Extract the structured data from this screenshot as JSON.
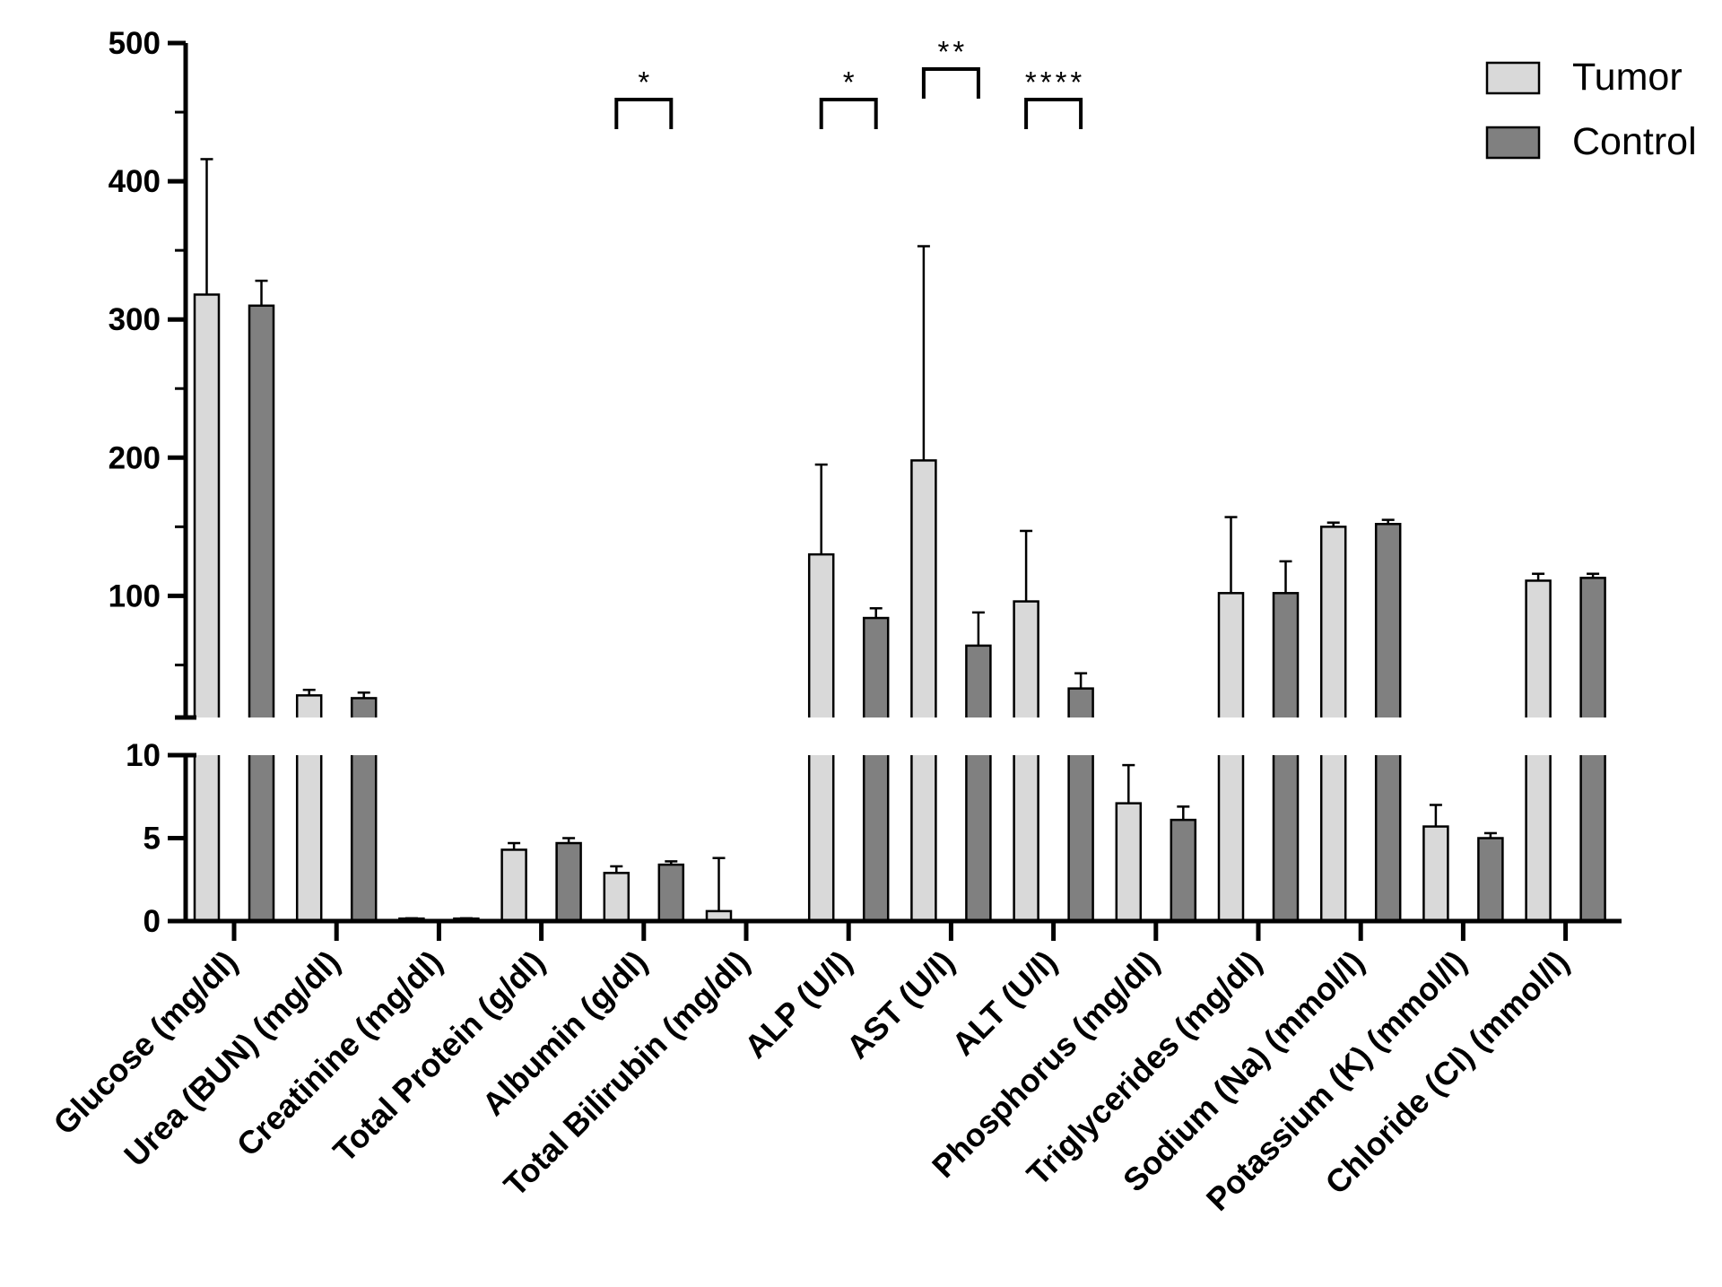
{
  "chart_data": {
    "type": "bar",
    "title": "",
    "xlabel": "",
    "ylabel": "",
    "y_axis_break": {
      "lower_range": [
        0,
        10
      ],
      "upper_range": [
        12,
        500
      ]
    },
    "y_ticks_lower": [
      "0",
      "5",
      "10"
    ],
    "y_ticks_upper": [
      "100",
      "200",
      "300",
      "400",
      "500"
    ],
    "categories": [
      "Glucose (mg/dl)",
      "Urea (BUN) (mg/dl)",
      "Creatinine (mg/dl)",
      "Total Protein (g/dl)",
      "Albumin (g/dl)",
      "Total Bilirubin (mg/dl)",
      "ALP (U/l)",
      "AST (U/l)",
      "ALT (U/l)",
      "Phosphorus (mg/dl)",
      "Triglycerides (mg/dl)",
      "Sodium (Na) (mmol/l)",
      "Potassium (K) (mmol/l)",
      "Chloride (Cl) (mmol/l)"
    ],
    "series": [
      {
        "name": "Tumor",
        "color": "#d9d9d9",
        "values": [
          318,
          28,
          0.15,
          4.3,
          2.9,
          0.6,
          130,
          198,
          96,
          7.1,
          102,
          150,
          5.7,
          111
        ],
        "errors": [
          98,
          4,
          0.02,
          0.4,
          0.4,
          3.2,
          65,
          155,
          51,
          2.3,
          55,
          3,
          1.3,
          5
        ]
      },
      {
        "name": "Control",
        "color": "#808080",
        "values": [
          310,
          26,
          0.15,
          4.7,
          3.4,
          0,
          84,
          64,
          33,
          6.1,
          102,
          152,
          5.0,
          113
        ],
        "errors": [
          18,
          4,
          0.02,
          0.3,
          0.2,
          0,
          7,
          24,
          11,
          0.8,
          23,
          3,
          0.3,
          3
        ]
      }
    ],
    "significance": [
      {
        "category_index": 4,
        "label": "*"
      },
      {
        "category_index": 6,
        "label": "*"
      },
      {
        "category_index": 7,
        "label": "**"
      },
      {
        "category_index": 8,
        "label": "****"
      }
    ],
    "legend": {
      "position": "top-right",
      "entries": [
        "Tumor",
        "Control"
      ]
    }
  }
}
